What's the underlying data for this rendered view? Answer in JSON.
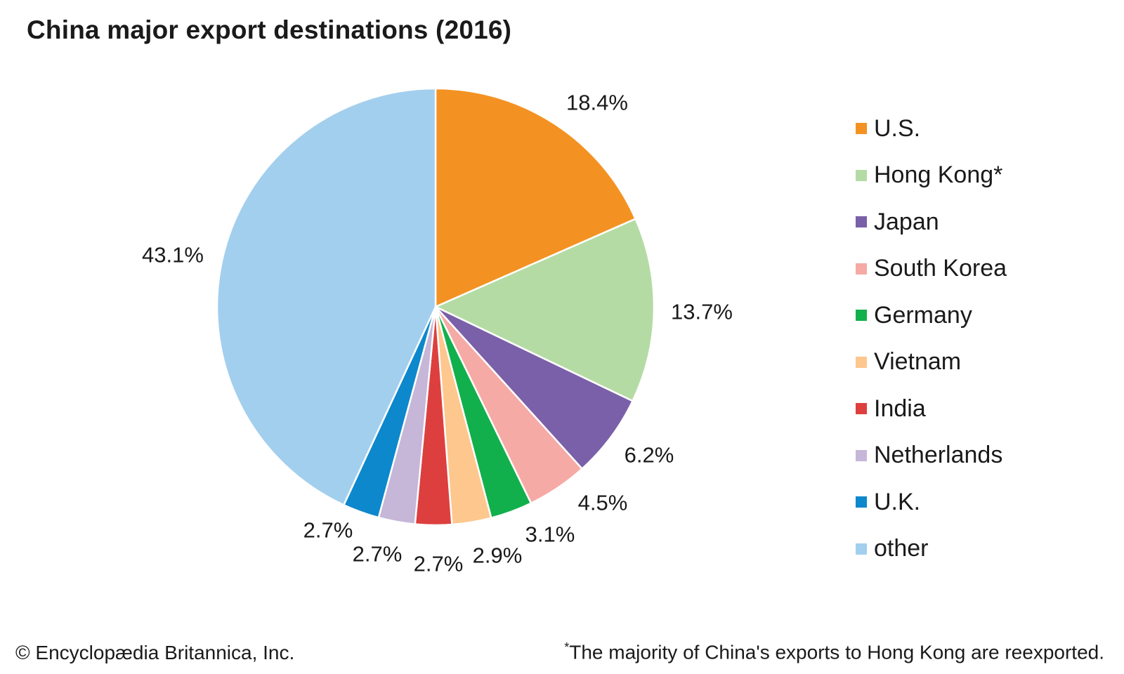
{
  "chart_data": {
    "type": "pie",
    "title": "China major export destinations (2016)",
    "start_angle": "12 o'clock",
    "direction": "clockwise",
    "legend_position": "right",
    "categories": [
      "U.S.",
      "Hong Kong*",
      "Japan",
      "South Korea",
      "Germany",
      "Vietnam",
      "India",
      "Netherlands",
      "U.K.",
      "other"
    ],
    "values": [
      18.4,
      13.7,
      6.2,
      4.5,
      3.1,
      2.9,
      2.7,
      2.7,
      2.7,
      43.1
    ],
    "value_labels": [
      "18.4%",
      "13.7%",
      "6.2%",
      "4.5%",
      "3.1%",
      "2.9%",
      "2.7%",
      "2.7%",
      "2.7%",
      "43.1%"
    ],
    "colors": [
      "#f39222",
      "#b5dba5",
      "#7a60a8",
      "#f6aaa5",
      "#12b04c",
      "#fdc78e",
      "#dd3f3f",
      "#c6b6d8",
      "#0d88cc",
      "#a3cfee"
    ]
  },
  "footer": {
    "credit": "© Encyclopædia Britannica, Inc.",
    "note_mark": "*",
    "note_text": "The majority of China's exports to Hong Kong are reexported."
  }
}
